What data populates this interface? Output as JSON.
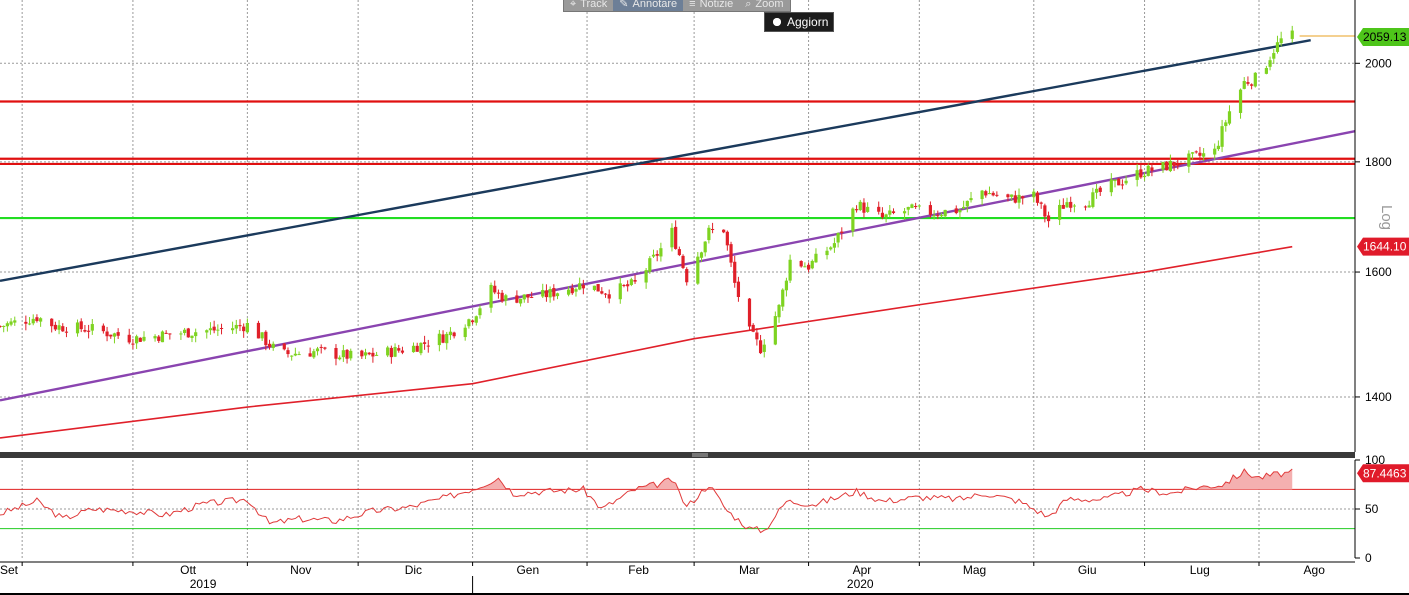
{
  "toolbar": {
    "items": [
      {
        "icon": "track-icon",
        "label": "Track"
      },
      {
        "icon": "annotate-icon",
        "label": "Annotare"
      },
      {
        "icon": "news-icon",
        "label": "Notizie"
      },
      {
        "icon": "zoom-icon",
        "label": "Zoom"
      }
    ],
    "update_label": "Aggiorn"
  },
  "chart_data": [
    {
      "type": "candlestick",
      "scale": "log",
      "scale_label": "Log",
      "ylim": [
        1320,
        2140
      ],
      "yticks": [
        1400,
        1600,
        1800,
        2000
      ],
      "x_range": [
        "2019-08-26",
        "2020-08-27"
      ],
      "x_month_ticks": [
        {
          "date": "2019-09-01",
          "label": "Set"
        },
        {
          "date": "2019-10-01",
          "label": "Ott"
        },
        {
          "date": "2019-11-01",
          "label": "Nov"
        },
        {
          "date": "2019-12-01",
          "label": "Dic"
        },
        {
          "date": "2020-01-01",
          "label": "Gen"
        },
        {
          "date": "2020-02-01",
          "label": "Feb"
        },
        {
          "date": "2020-03-01",
          "label": "Mar"
        },
        {
          "date": "2020-04-01",
          "label": "Apr"
        },
        {
          "date": "2020-05-01",
          "label": "Mag"
        },
        {
          "date": "2020-06-01",
          "label": "Giu"
        },
        {
          "date": "2020-07-01",
          "label": "Lug"
        },
        {
          "date": "2020-08-01",
          "label": "Ago"
        }
      ],
      "x_year_labels": [
        {
          "date": "2019-10-20",
          "label": "2019"
        },
        {
          "date": "2020-04-15",
          "label": "2020"
        }
      ],
      "year_divider": "2020-01-01",
      "price_path": [
        [
          "2019-08-26",
          1510
        ],
        [
          "2019-09-05",
          1525
        ],
        [
          "2019-09-10",
          1510
        ],
        [
          "2019-09-20",
          1505
        ],
        [
          "2019-10-01",
          1490
        ],
        [
          "2019-10-15",
          1500
        ],
        [
          "2019-10-25",
          1505
        ],
        [
          "2019-11-01",
          1512
        ],
        [
          "2019-11-10",
          1465
        ],
        [
          "2019-11-20",
          1470
        ],
        [
          "2019-12-01",
          1460
        ],
        [
          "2019-12-15",
          1475
        ],
        [
          "2019-12-25",
          1495
        ],
        [
          "2020-01-01",
          1525
        ],
        [
          "2020-01-06",
          1570
        ],
        [
          "2020-01-10",
          1555
        ],
        [
          "2020-01-20",
          1560
        ],
        [
          "2020-01-31",
          1580
        ],
        [
          "2020-02-07",
          1565
        ],
        [
          "2020-02-14",
          1580
        ],
        [
          "2020-02-21",
          1640
        ],
        [
          "2020-02-24",
          1670
        ],
        [
          "2020-02-28",
          1590
        ],
        [
          "2020-03-05",
          1670
        ],
        [
          "2020-03-09",
          1675
        ],
        [
          "2020-03-12",
          1580
        ],
        [
          "2020-03-16",
          1500
        ],
        [
          "2020-03-19",
          1475
        ],
        [
          "2020-03-24",
          1540
        ],
        [
          "2020-03-27",
          1620
        ],
        [
          "2020-04-01",
          1610
        ],
        [
          "2020-04-08",
          1650
        ],
        [
          "2020-04-14",
          1720
        ],
        [
          "2020-04-21",
          1695
        ],
        [
          "2020-04-28",
          1710
        ],
        [
          "2020-05-05",
          1705
        ],
        [
          "2020-05-12",
          1710
        ],
        [
          "2020-05-18",
          1745
        ],
        [
          "2020-05-25",
          1730
        ],
        [
          "2020-06-01",
          1735
        ],
        [
          "2020-06-05",
          1690
        ],
        [
          "2020-06-10",
          1725
        ],
        [
          "2020-06-15",
          1725
        ],
        [
          "2020-06-22",
          1755
        ],
        [
          "2020-06-30",
          1780
        ],
        [
          "2020-07-06",
          1790
        ],
        [
          "2020-07-13",
          1805
        ],
        [
          "2020-07-20",
          1820
        ],
        [
          "2020-07-24",
          1900
        ],
        [
          "2020-07-28",
          1960
        ],
        [
          "2020-08-01",
          1970
        ],
        [
          "2020-08-05",
          2030
        ],
        [
          "2020-08-07",
          2050
        ],
        [
          "2020-08-10",
          2059
        ]
      ],
      "moving_average": {
        "color": "#e0202a",
        "points": [
          [
            "2019-08-26",
            1340
          ],
          [
            "2019-11-01",
            1385
          ],
          [
            "2020-01-01",
            1420
          ],
          [
            "2020-03-01",
            1490
          ],
          [
            "2020-05-01",
            1545
          ],
          [
            "2020-07-01",
            1600
          ],
          [
            "2020-08-10",
            1644
          ]
        ],
        "last_value": 1644.1,
        "label": "1644.10"
      },
      "last_price": {
        "value": 2059.13,
        "label": "2059.13",
        "color": "#4ec51a"
      },
      "horizontal_levels": [
        {
          "value": 1920,
          "color": "#e01010"
        },
        {
          "value": 1796,
          "color": "#e01010"
        },
        {
          "value": 1806,
          "color": "#e01010"
        },
        {
          "value": 1695,
          "color": "#22dd22"
        }
      ],
      "trendlines": [
        {
          "color": "#1b3a5c",
          "from": [
            "2019-08-26",
            1585
          ],
          "to": [
            "2020-08-15",
            2050
          ]
        },
        {
          "color": "#8a44b0",
          "from": [
            "2019-08-26",
            1395
          ],
          "to": [
            "2020-08-27",
            1860
          ]
        }
      ]
    },
    {
      "type": "line",
      "indicator": "RSI",
      "ylim": [
        0,
        100
      ],
      "yticks": [
        0,
        50,
        100
      ],
      "last_value": 87.4463,
      "last_label": "87.4463",
      "overbought": 70,
      "oversold": 30,
      "color": "#e03a3a",
      "points": [
        [
          "2019-08-26",
          45
        ],
        [
          "2019-09-05",
          58
        ],
        [
          "2019-09-12",
          40
        ],
        [
          "2019-09-20",
          50
        ],
        [
          "2019-10-01",
          48
        ],
        [
          "2019-10-10",
          44
        ],
        [
          "2019-10-20",
          55
        ],
        [
          "2019-11-01",
          60
        ],
        [
          "2019-11-07",
          35
        ],
        [
          "2019-11-15",
          40
        ],
        [
          "2019-11-25",
          38
        ],
        [
          "2019-12-05",
          48
        ],
        [
          "2019-12-15",
          52
        ],
        [
          "2019-12-25",
          62
        ],
        [
          "2020-01-02",
          72
        ],
        [
          "2020-01-08",
          82
        ],
        [
          "2020-01-12",
          66
        ],
        [
          "2020-01-20",
          68
        ],
        [
          "2020-01-31",
          70
        ],
        [
          "2020-02-05",
          50
        ],
        [
          "2020-02-14",
          70
        ],
        [
          "2020-02-21",
          76
        ],
        [
          "2020-02-24",
          80
        ],
        [
          "2020-02-28",
          52
        ],
        [
          "2020-03-05",
          75
        ],
        [
          "2020-03-10",
          48
        ],
        [
          "2020-03-16",
          30
        ],
        [
          "2020-03-20",
          28
        ],
        [
          "2020-03-26",
          58
        ],
        [
          "2020-04-03",
          55
        ],
        [
          "2020-04-14",
          68
        ],
        [
          "2020-04-21",
          58
        ],
        [
          "2020-05-01",
          62
        ],
        [
          "2020-05-12",
          60
        ],
        [
          "2020-05-19",
          66
        ],
        [
          "2020-05-28",
          58
        ],
        [
          "2020-06-05",
          42
        ],
        [
          "2020-06-10",
          60
        ],
        [
          "2020-06-20",
          60
        ],
        [
          "2020-06-30",
          70
        ],
        [
          "2020-07-08",
          66
        ],
        [
          "2020-07-15",
          72
        ],
        [
          "2020-07-22",
          75
        ],
        [
          "2020-07-28",
          88
        ],
        [
          "2020-08-01",
          82
        ],
        [
          "2020-08-05",
          85
        ],
        [
          "2020-08-10",
          87.4
        ]
      ]
    }
  ]
}
